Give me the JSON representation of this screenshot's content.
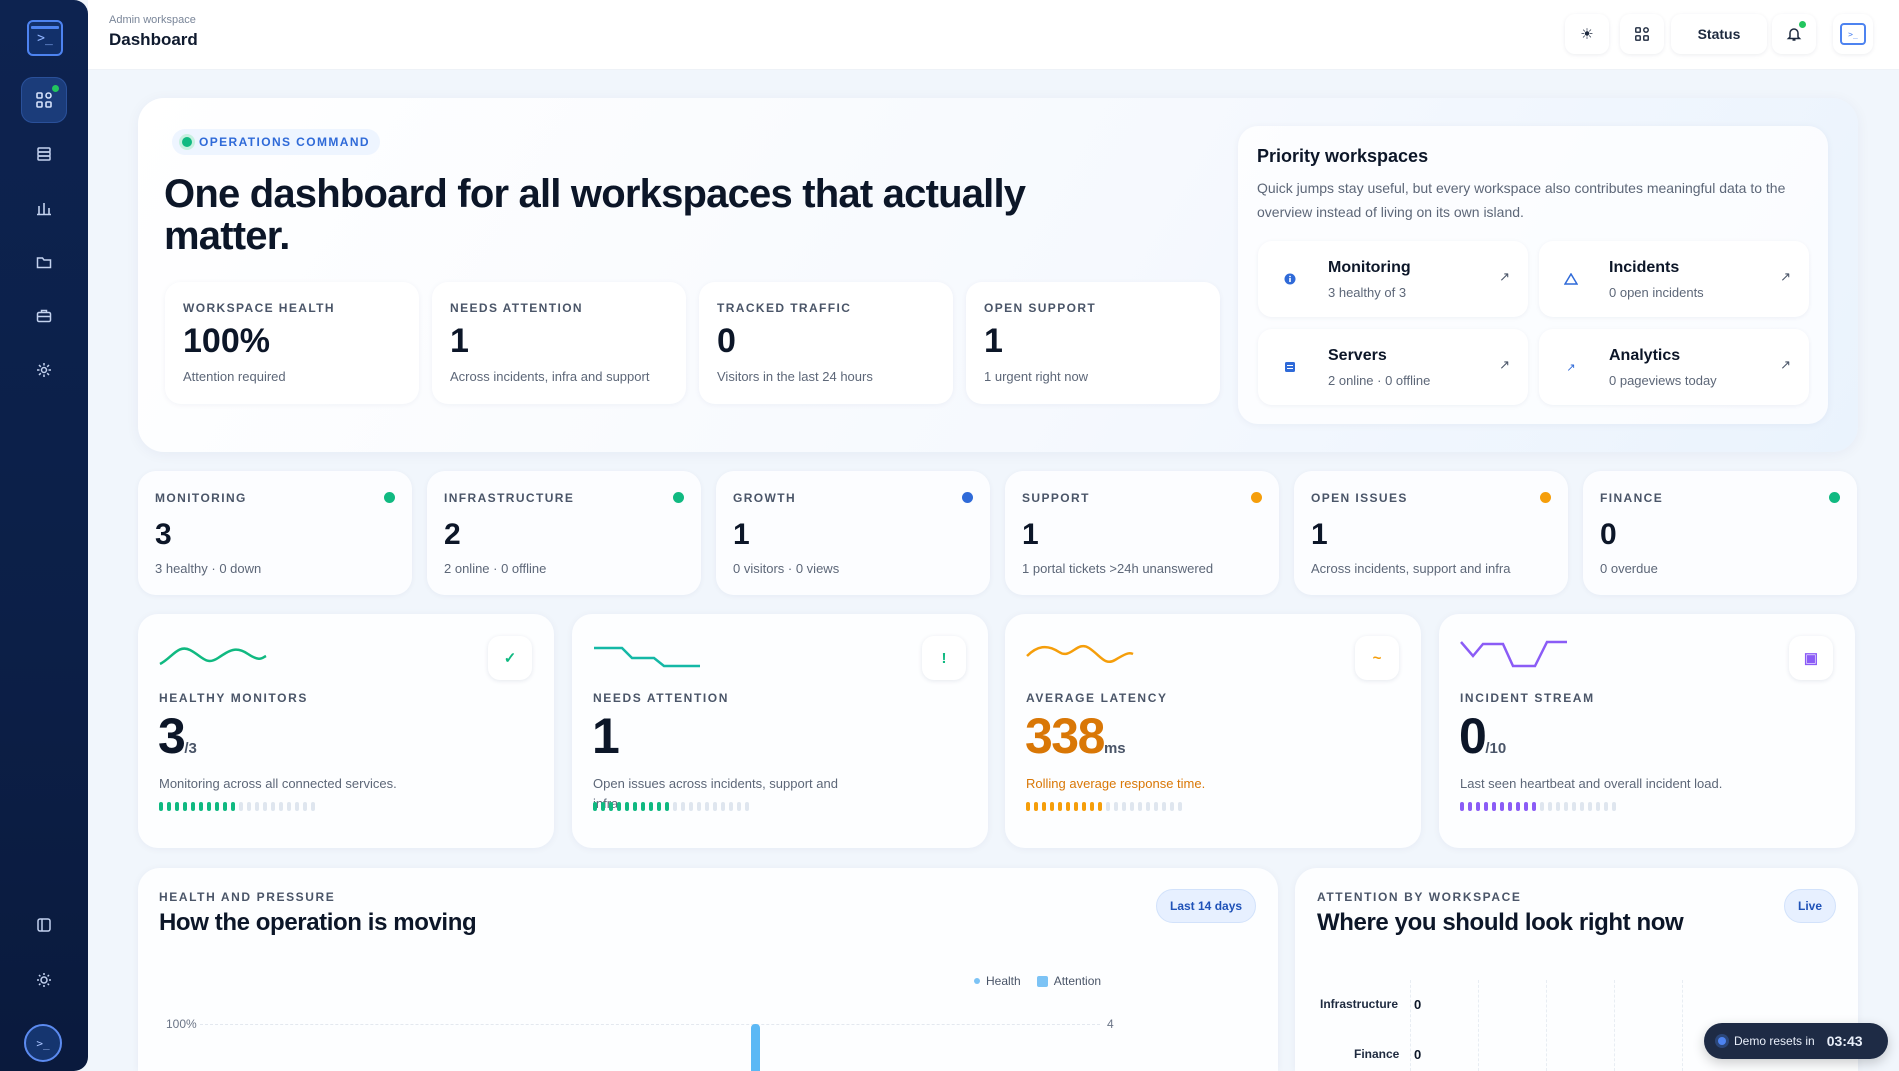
{
  "header": {
    "crumb": "Admin workspace",
    "title": "Dashboard",
    "status_label": "Status"
  },
  "hero": {
    "tag": "OPERATIONS COMMAND",
    "title": "One dashboard for all workspaces that actually matter.",
    "kpis": [
      {
        "label": "WORKSPACE HEALTH",
        "value": "100%",
        "sub": "Attention required"
      },
      {
        "label": "NEEDS ATTENTION",
        "value": "1",
        "sub": "Across incidents, infra and support"
      },
      {
        "label": "TRACKED TRAFFIC",
        "value": "0",
        "sub": "Visitors in the last 24 hours"
      },
      {
        "label": "OPEN SUPPORT",
        "value": "1",
        "sub": "1 urgent right now"
      }
    ]
  },
  "priority": {
    "title": "Priority workspaces",
    "desc": "Quick jumps stay useful, but every workspace also contributes meaningful data to the overview instead of living on its own island.",
    "items": [
      {
        "name": "Monitoring",
        "sub": "3 healthy of 3",
        "icon": "info-icon"
      },
      {
        "name": "Incidents",
        "sub": "0 open incidents",
        "icon": "warning-icon"
      },
      {
        "name": "Servers",
        "sub": "2 online · 0 offline",
        "icon": "server-icon"
      },
      {
        "name": "Analytics",
        "sub": "0 pageviews today",
        "icon": "trend-icon"
      }
    ]
  },
  "modules": [
    {
      "label": "MONITORING",
      "value": "3",
      "sub": "3 healthy · 0 down",
      "color": "#10b981"
    },
    {
      "label": "INFRASTRUCTURE",
      "value": "2",
      "sub": "2 online · 0 offline",
      "color": "#10b981"
    },
    {
      "label": "GROWTH",
      "value": "1",
      "sub": "0 visitors · 0 views",
      "color": "#2f6ad8"
    },
    {
      "label": "SUPPORT",
      "value": "1",
      "sub": "1 portal tickets >24h unanswered",
      "color": "#f59e0b"
    },
    {
      "label": "OPEN ISSUES",
      "value": "1",
      "sub": "Across incidents, support and infra",
      "color": "#f59e0b"
    },
    {
      "label": "FINANCE",
      "value": "0",
      "sub": "0 overdue",
      "color": "#10b981"
    }
  ],
  "big": [
    {
      "label": "HEALTHY MONITORS",
      "value": "3",
      "unit": "/3",
      "sub": "Monitoring across all connected services.",
      "icon": "✓",
      "color": "#10b981",
      "filled": 10
    },
    {
      "label": "NEEDS ATTENTION",
      "value": "1",
      "unit": "",
      "sub": "Open issues across incidents, support and infra.",
      "icon": "!",
      "color": "#10b981",
      "filled": 10
    },
    {
      "label": "AVERAGE LATENCY",
      "value": "338",
      "unit": "ms",
      "sub": "Rolling average response time.",
      "icon": "~",
      "color": "#f59e0b",
      "filled": 10
    },
    {
      "label": "INCIDENT STREAM",
      "value": "0",
      "unit": "/10",
      "sub": "Last seen heartbeat and overall incident load.",
      "icon": "▣",
      "color": "#8b5cf6",
      "filled": 10
    }
  ],
  "health_panel": {
    "label": "HEALTH AND PRESSURE",
    "title": "How the operation is moving",
    "chip": "Last 14 days",
    "legend_health": "Health",
    "legend_attention": "Attention",
    "y_left_top": "100%",
    "y_right_top": "4"
  },
  "attention_panel": {
    "label": "ATTENTION BY WORKSPACE",
    "title": "Where you should look right now",
    "chip": "Live",
    "rows": [
      {
        "name": "Infrastructure",
        "value": "0"
      },
      {
        "name": "Finance",
        "value": "0"
      }
    ]
  },
  "toast": {
    "text": "Demo resets in",
    "time": "03:43"
  }
}
